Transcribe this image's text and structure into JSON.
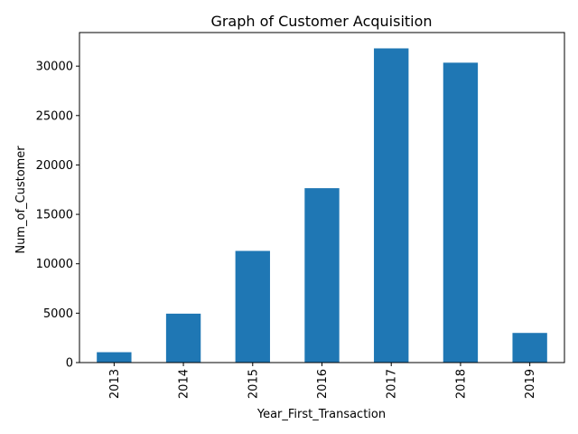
{
  "chart_data": {
    "type": "bar",
    "title": "Graph of Customer Acquisition",
    "xlabel": "Year_First_Transaction",
    "ylabel": "Num_of_Customer",
    "categories": [
      "2013",
      "2014",
      "2015",
      "2016",
      "2017",
      "2018",
      "2019"
    ],
    "values": [
      1050,
      4950,
      11300,
      17650,
      31800,
      30350,
      3000
    ],
    "ylim": [
      0,
      33400
    ],
    "yticks": [
      0,
      5000,
      10000,
      15000,
      20000,
      25000,
      30000
    ],
    "ytick_labels": [
      "0",
      "5000",
      "10000",
      "15000",
      "20000",
      "25000",
      "30000"
    ],
    "xtick_rotation": "vertical",
    "grid": false,
    "legend": false,
    "bar_color": "#1f77b4"
  }
}
